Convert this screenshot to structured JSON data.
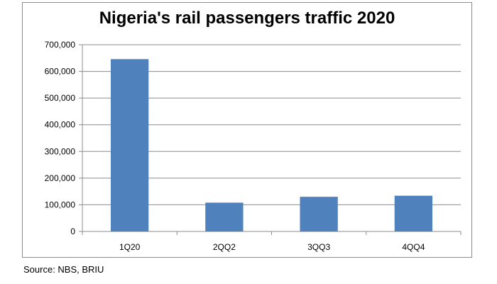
{
  "chart_data": {
    "type": "bar",
    "title": "Nigeria's rail passengers traffic 2020",
    "categories": [
      "1Q20",
      "2QQ2",
      "3QQ3",
      "4QQ4"
    ],
    "values": [
      646000,
      108000,
      130000,
      134000
    ],
    "xlabel": "",
    "ylabel": "",
    "ylim": [
      0,
      700000
    ],
    "yticks": [
      "0",
      "100,000",
      "200,000",
      "300,000",
      "400,000",
      "500,000",
      "600,000",
      "700,000"
    ],
    "grid": true,
    "legend": "none",
    "bar_color": "#4f81bd"
  },
  "source": "Source: NBS, BRIU"
}
